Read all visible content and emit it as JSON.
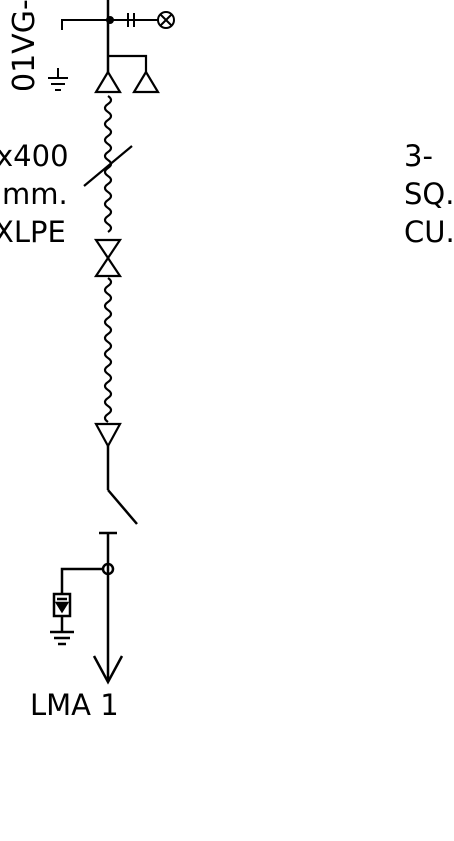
{
  "diagram": {
    "left_texts": {
      "vertical_tag": "01VG-",
      "cable_size_line1": "x400",
      "cable_size_line2": "mm.",
      "cable_type": "XLPE"
    },
    "right_texts": {
      "line1": "3-",
      "line2": "SQ.",
      "line3": "CU."
    },
    "bottom_label": "LMA 1"
  }
}
